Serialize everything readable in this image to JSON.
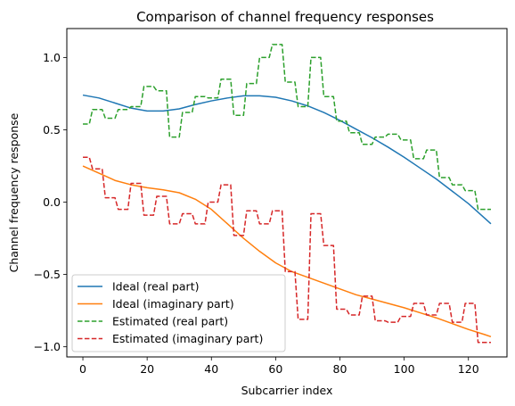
{
  "chart_data": {
    "type": "line",
    "title": "Comparison of channel frequency responses",
    "xlabel": "Subcarrier index",
    "ylabel": "Channel frequency response",
    "xlim": [
      -5,
      132
    ],
    "ylim": [
      -1.07,
      1.2
    ],
    "xticks": [
      0,
      20,
      40,
      60,
      80,
      100,
      120
    ],
    "yticks": [
      -1.0,
      -0.5,
      0.0,
      0.5,
      1.0
    ],
    "ytick_labels": [
      "−1.0",
      "−0.5",
      "0.0",
      "0.5",
      "1.0"
    ],
    "grid": false,
    "legend_position": "lower-left",
    "series": [
      {
        "name": "Ideal (real part)",
        "color": "#1f77b4",
        "style": "solid",
        "x": [
          0,
          5,
          10,
          15,
          20,
          25,
          30,
          35,
          40,
          45,
          50,
          55,
          60,
          65,
          70,
          75,
          80,
          85,
          90,
          95,
          100,
          105,
          110,
          115,
          120,
          125,
          127
        ],
        "y": [
          0.74,
          0.72,
          0.685,
          0.65,
          0.63,
          0.63,
          0.645,
          0.675,
          0.7,
          0.72,
          0.735,
          0.735,
          0.725,
          0.7,
          0.665,
          0.62,
          0.565,
          0.505,
          0.445,
          0.38,
          0.31,
          0.235,
          0.16,
          0.075,
          -0.01,
          -0.11,
          -0.15
        ]
      },
      {
        "name": "Ideal (imaginary part)",
        "color": "#ff7f0e",
        "style": "solid",
        "x": [
          0,
          5,
          10,
          15,
          20,
          25,
          30,
          35,
          40,
          45,
          50,
          55,
          60,
          65,
          70,
          75,
          80,
          85,
          90,
          95,
          100,
          105,
          110,
          115,
          120,
          125,
          127
        ],
        "y": [
          0.25,
          0.2,
          0.15,
          0.12,
          0.1,
          0.085,
          0.065,
          0.02,
          -0.05,
          -0.15,
          -0.25,
          -0.34,
          -0.42,
          -0.48,
          -0.52,
          -0.56,
          -0.6,
          -0.64,
          -0.67,
          -0.7,
          -0.73,
          -0.765,
          -0.8,
          -0.84,
          -0.88,
          -0.915,
          -0.93
        ]
      },
      {
        "name": "Estimated (real part)",
        "color": "#2ca02c",
        "style": "dashed",
        "x": [
          0,
          2,
          3,
          6,
          7,
          10,
          11,
          14,
          15,
          18,
          19,
          22,
          23,
          26,
          27,
          30,
          31,
          34,
          35,
          38,
          39,
          42,
          43,
          46,
          47,
          50,
          51,
          54,
          55,
          58,
          59,
          62,
          63,
          66,
          67,
          70,
          71,
          74,
          75,
          78,
          79,
          82,
          83,
          86,
          87,
          90,
          91,
          94,
          95,
          98,
          99,
          102,
          103,
          106,
          107,
          110,
          111,
          114,
          115,
          118,
          119,
          122,
          123,
          127
        ],
        "y": [
          0.54,
          0.54,
          0.64,
          0.64,
          0.58,
          0.58,
          0.64,
          0.64,
          0.66,
          0.66,
          0.8,
          0.8,
          0.77,
          0.77,
          0.45,
          0.45,
          0.62,
          0.62,
          0.73,
          0.73,
          0.72,
          0.72,
          0.85,
          0.85,
          0.6,
          0.6,
          0.82,
          0.82,
          1.0,
          1.0,
          1.09,
          1.09,
          0.83,
          0.83,
          0.66,
          0.66,
          1.0,
          1.0,
          0.73,
          0.73,
          0.56,
          0.56,
          0.48,
          0.48,
          0.4,
          0.4,
          0.45,
          0.45,
          0.47,
          0.47,
          0.43,
          0.43,
          0.3,
          0.3,
          0.36,
          0.36,
          0.17,
          0.17,
          0.12,
          0.12,
          0.08,
          0.08,
          -0.05,
          -0.05
        ]
      },
      {
        "name": "Estimated (imaginary part)",
        "color": "#d62728",
        "style": "dashed",
        "x": [
          0,
          2,
          3,
          6,
          7,
          10,
          11,
          14,
          15,
          18,
          19,
          22,
          23,
          26,
          27,
          30,
          31,
          34,
          35,
          38,
          39,
          42,
          43,
          46,
          47,
          50,
          51,
          54,
          55,
          58,
          59,
          62,
          63,
          66,
          67,
          70,
          71,
          74,
          75,
          78,
          79,
          82,
          83,
          86,
          87,
          90,
          91,
          94,
          95,
          98,
          99,
          102,
          103,
          106,
          107,
          110,
          111,
          114,
          115,
          118,
          119,
          122,
          123,
          127
        ],
        "y": [
          0.31,
          0.31,
          0.23,
          0.23,
          0.03,
          0.03,
          -0.05,
          -0.05,
          0.13,
          0.13,
          -0.09,
          -0.09,
          0.04,
          0.04,
          -0.15,
          -0.15,
          -0.08,
          -0.08,
          -0.15,
          -0.15,
          0.0,
          0.0,
          0.12,
          0.12,
          -0.23,
          -0.23,
          -0.06,
          -0.06,
          -0.15,
          -0.15,
          -0.06,
          -0.06,
          -0.48,
          -0.48,
          -0.81,
          -0.81,
          -0.08,
          -0.08,
          -0.3,
          -0.3,
          -0.74,
          -0.74,
          -0.78,
          -0.78,
          -0.65,
          -0.65,
          -0.82,
          -0.82,
          -0.83,
          -0.83,
          -0.79,
          -0.79,
          -0.7,
          -0.7,
          -0.78,
          -0.78,
          -0.7,
          -0.7,
          -0.83,
          -0.83,
          -0.7,
          -0.7,
          -0.97,
          -0.97
        ]
      }
    ]
  }
}
